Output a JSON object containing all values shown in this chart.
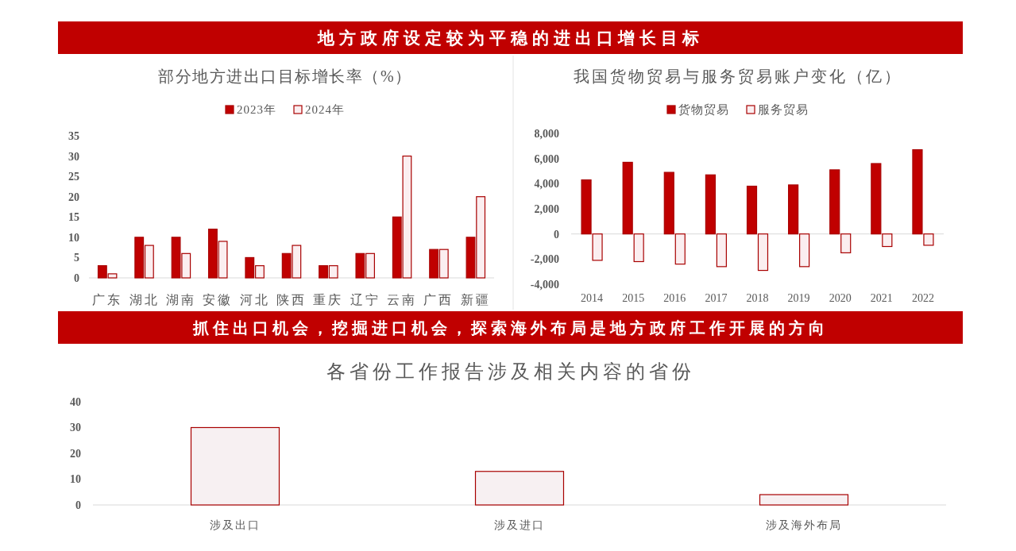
{
  "chart_data": [
    {
      "type": "other",
      "title": "地方政府设定较为平稳的进出口增长目标"
    },
    {
      "type": "bar",
      "title": "部分地方进出口目标增长率（%）",
      "categories": [
        "广东",
        "湖北",
        "湖南",
        "安徽",
        "河北",
        "陕西",
        "重庆",
        "辽宁",
        "云南",
        "广西",
        "新疆"
      ],
      "series": [
        {
          "name": "2023年",
          "color": "#c00000",
          "values": [
            3,
            10,
            10,
            12,
            5,
            6,
            3,
            6,
            15,
            7,
            10
          ]
        },
        {
          "name": "2024年",
          "color": "#fbeef0",
          "values": [
            1,
            8,
            6,
            9,
            3,
            8,
            3,
            6,
            30,
            7,
            20
          ]
        }
      ],
      "ylim": [
        0,
        35
      ],
      "yticks": [
        0,
        5,
        10,
        15,
        20,
        25,
        30,
        35
      ],
      "legend": "top"
    },
    {
      "type": "bar",
      "title": "我国货物贸易与服务贸易账户变化（亿）",
      "categories": [
        "2014",
        "2015",
        "2016",
        "2017",
        "2018",
        "2019",
        "2020",
        "2021",
        "2022"
      ],
      "series": [
        {
          "name": "货物贸易",
          "color": "#c00000",
          "values": [
            4300,
            5700,
            4900,
            4700,
            3800,
            3900,
            5100,
            5600,
            6700
          ]
        },
        {
          "name": "服务贸易",
          "color": "#fbeef0",
          "values": [
            -2100,
            -2200,
            -2400,
            -2600,
            -2900,
            -2600,
            -1500,
            -1000,
            -900
          ]
        }
      ],
      "ylim": [
        -4000,
        8000
      ],
      "yticks": [
        {
          "value": -4000,
          "label": "-4,000"
        },
        {
          "value": -2000,
          "label": "-2,000"
        },
        0,
        {
          "value": 2000,
          "label": "2,000"
        },
        {
          "value": 4000,
          "label": "4,000"
        },
        {
          "value": 6000,
          "label": "6,000"
        },
        {
          "value": 8000,
          "label": "8,000"
        }
      ],
      "legend": "top"
    },
    {
      "type": "other",
      "title": "抓住出口机会，挖掘进口机会，探索海外布局是地方政府工作开展的方向"
    },
    {
      "type": "bar",
      "title": "各省份工作报告涉及相关内容的省份",
      "categories": [
        "涉及出口",
        "涉及进口",
        "涉及海外布局"
      ],
      "values": [
        30,
        13,
        4
      ],
      "color": "#f7f0f2",
      "ylim": [
        0,
        40
      ],
      "yticks": [
        0,
        10,
        20,
        30,
        40
      ]
    }
  ]
}
